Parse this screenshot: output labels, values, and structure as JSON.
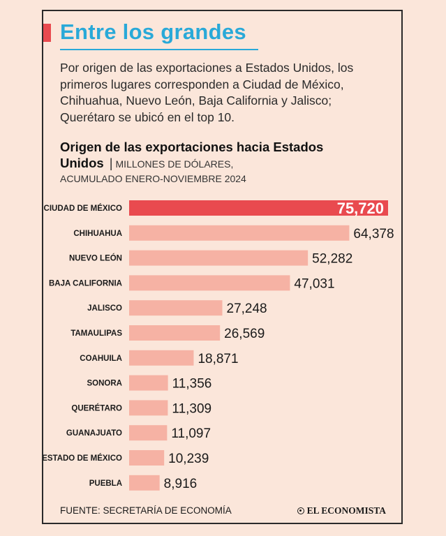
{
  "header": {
    "title": "Entre los grandes",
    "subtitle": "Por origen de las exportaciones a Estados Unidos, los primeros lugares corresponden a Ciudad de México, Chihuahua, Nuevo León, Baja California y Jalisco; Querétaro se ubicó en el top 10.",
    "accent_color": "#e94a4f",
    "title_color": "#29a9d8"
  },
  "chart_data": {
    "type": "bar",
    "orientation": "horizontal",
    "title": "Origen de las exportaciones hacia Estados Unidos",
    "unit": "MILLONES DE DÓLARES,",
    "period": "ACUMULADO ENERO-NOVIEMBRE 2024",
    "categories": [
      "CIUDAD DE MÉXICO",
      "CHIHUAHUA",
      "NUEVO LEÓN",
      "BAJA CALIFORNIA",
      "JALISCO",
      "TAMAULIPAS",
      "COAHUILA",
      "SONORA",
      "QUERÉTARO",
      "GUANAJUATO",
      "ESTADO DE MÉXICO",
      "PUEBLA"
    ],
    "values": [
      75720,
      64378,
      52282,
      47031,
      27248,
      26569,
      18871,
      11356,
      11309,
      11097,
      10239,
      8916
    ],
    "value_labels": [
      "75,720",
      "64,378",
      "52,282",
      "47,031",
      "27,248",
      "26,569",
      "18,871",
      "11,356",
      "11,309",
      "11,097",
      "10,239",
      "8,916"
    ],
    "highlight_index": 0,
    "highlight_color": "#e94a4f",
    "bar_color": "#f6b2a4",
    "xlim": [
      0,
      75720
    ],
    "grid": false
  },
  "footer": {
    "source": "FUENTE: SECRETARÍA DE ECONOMÍA",
    "logo": "EL ECONOMISTA"
  }
}
